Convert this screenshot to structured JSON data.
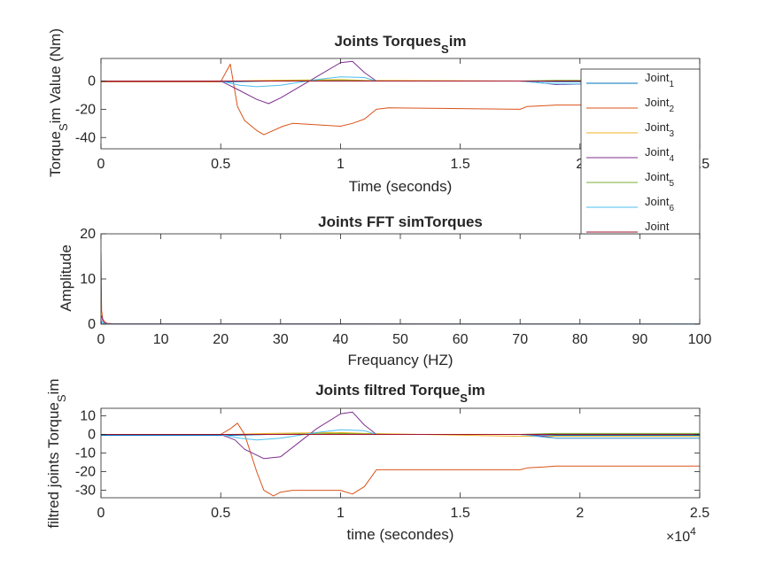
{
  "colors": {
    "joint1": "#0072BD",
    "joint2": "#D95319",
    "joint3": "#EDB120",
    "joint4": "#7E2F8E",
    "joint5": "#77AC30",
    "joint6": "#4DBEEE",
    "joint7": "#A2142F",
    "axes": "#262626",
    "background": "#ffffff"
  },
  "legend": {
    "placement": "top-right",
    "entries": [
      {
        "name": "Joint",
        "sub": "1"
      },
      {
        "name": "Joint",
        "sub": "2"
      },
      {
        "name": "Joint",
        "sub": "3"
      },
      {
        "name": "Joint",
        "sub": "4"
      },
      {
        "name": "Joint",
        "sub": "5"
      },
      {
        "name": "Joint",
        "sub": "6"
      },
      {
        "name": "Joint",
        "sub": ""
      }
    ]
  },
  "chart_data": [
    {
      "type": "line",
      "title_main": "Joints Torques",
      "title_sub": "S",
      "title_tail": "im",
      "xlabel": "Time (seconds)",
      "ylabel_main": "Torque",
      "ylabel_sub": "S",
      "ylabel_tail": "im Value (Nm)",
      "xlim": [
        0,
        25000
      ],
      "ylim": [
        -48,
        16
      ],
      "xticks": [
        0,
        5000,
        10000,
        15000,
        20000,
        25000
      ],
      "xtick_labels": [
        "0",
        "0.5",
        "1",
        "1.5",
        "2",
        "2.5"
      ],
      "yticks": [
        -40,
        -20,
        0
      ],
      "ytick_labels": [
        "-40",
        "-20",
        "0"
      ],
      "x_exponent_base": "",
      "x_exponent_power": "4",
      "series": [
        {
          "key": "joint1",
          "x": [
            0,
            5500,
            7000,
            10000,
            12000,
            17500,
            19000,
            25000
          ],
          "y": [
            -0.5,
            -0.5,
            0,
            0,
            0,
            0,
            -0.5,
            -0.5
          ]
        },
        {
          "key": "joint2",
          "x": [
            0,
            5000,
            5400,
            5700,
            6000,
            6500,
            6800,
            7200,
            7600,
            8000,
            9000,
            10000,
            10500,
            11000,
            11500,
            12000,
            17500,
            17800,
            18500,
            19000,
            25000
          ],
          "y": [
            -0.5,
            -0.5,
            12,
            -18,
            -28,
            -35,
            -38,
            -35,
            -32,
            -30,
            -31,
            -32,
            -30,
            -27,
            -20,
            -19,
            -20,
            -18,
            -17.5,
            -17,
            -17
          ]
        },
        {
          "key": "joint3",
          "x": [
            0,
            5500,
            7000,
            10000,
            11000,
            17500,
            19000,
            25000
          ],
          "y": [
            0,
            0,
            0.5,
            1,
            0.5,
            0,
            0,
            0
          ]
        },
        {
          "key": "joint4",
          "x": [
            0,
            5000,
            5600,
            6500,
            7000,
            7500,
            8500,
            9000,
            10000,
            10500,
            11000,
            11500,
            17500,
            18500,
            19000,
            25000
          ],
          "y": [
            0,
            0,
            -5,
            -13,
            -16,
            -12,
            -2,
            3,
            13,
            14,
            6,
            0,
            0,
            -1.5,
            -2.5,
            0
          ]
        },
        {
          "key": "joint5",
          "x": [
            0,
            5500,
            7000,
            10000,
            12000,
            17500,
            19000,
            25000
          ],
          "y": [
            0,
            0,
            0,
            0.5,
            0,
            0,
            0.5,
            0.5
          ]
        },
        {
          "key": "joint6",
          "x": [
            0,
            5000,
            5800,
            6500,
            7500,
            9000,
            10000,
            11000,
            11500,
            17500,
            18500,
            19000,
            25000
          ],
          "y": [
            0,
            0,
            -3,
            -4,
            -3,
            1,
            3,
            2.5,
            0,
            0,
            -1.5,
            -2,
            -2
          ]
        },
        {
          "key": "joint7",
          "x": [
            0,
            5500,
            7000,
            10000,
            12000,
            17500,
            25000
          ],
          "y": [
            0,
            0,
            0,
            0,
            0,
            0,
            0
          ]
        }
      ]
    },
    {
      "type": "line",
      "title_main": "Joints FFT simTorques",
      "title_sub": "",
      "title_tail": "",
      "xlabel": "Frequancy (HZ)",
      "ylabel_main": "Amplitude",
      "ylabel_sub": "",
      "ylabel_tail": "",
      "xlim": [
        0,
        100
      ],
      "ylim": [
        0,
        20
      ],
      "xticks": [
        0,
        10,
        20,
        30,
        40,
        50,
        60,
        70,
        80,
        90,
        100
      ],
      "xtick_labels": [
        "0",
        "10",
        "20",
        "30",
        "40",
        "50",
        "60",
        "70",
        "80",
        "90",
        "100"
      ],
      "yticks": [
        0,
        10,
        20
      ],
      "ytick_labels": [
        "0",
        "10",
        "20"
      ],
      "x_exponent_base": "",
      "x_exponent_power": "",
      "series": [
        {
          "key": "joint1",
          "x": [
            0,
            0.1,
            0.3,
            0.6,
            1,
            2,
            100
          ],
          "y": [
            0,
            0.5,
            0.3,
            0.1,
            0.05,
            0.02,
            0.01
          ]
        },
        {
          "key": "joint2",
          "x": [
            0,
            0.1,
            0.3,
            0.6,
            1,
            2,
            100
          ],
          "y": [
            16,
            3,
            1.2,
            0.5,
            0.2,
            0.1,
            0.02
          ]
        },
        {
          "key": "joint4",
          "x": [
            0,
            0.1,
            0.3,
            0.6,
            1,
            2,
            100
          ],
          "y": [
            1.5,
            1.8,
            0.8,
            0.3,
            0.1,
            0.05,
            0.01
          ]
        },
        {
          "key": "joint6",
          "x": [
            0,
            0.1,
            0.3,
            0.6,
            1,
            2,
            100
          ],
          "y": [
            0.8,
            0.6,
            0.3,
            0.1,
            0.05,
            0.02,
            0.01
          ]
        }
      ]
    },
    {
      "type": "line",
      "title_main": "Joints filtred  Torque",
      "title_sub": "S",
      "title_tail": "im",
      "xlabel": "time (secondes)",
      "ylabel_main": "filtred joints Torque",
      "ylabel_sub": "S",
      "ylabel_tail": "im",
      "xlim": [
        0,
        25000
      ],
      "ylim": [
        -34,
        14
      ],
      "xticks": [
        0,
        5000,
        10000,
        15000,
        20000,
        25000
      ],
      "xtick_labels": [
        "0",
        "0.5",
        "1",
        "1.5",
        "2",
        "2.5"
      ],
      "yticks": [
        -30,
        -20,
        -10,
        0,
        10
      ],
      "ytick_labels": [
        "-30",
        "-20",
        "-10",
        "0",
        "10"
      ],
      "x_exponent_base": "×10",
      "x_exponent_power": "4",
      "series": [
        {
          "key": "joint1",
          "x": [
            0,
            5500,
            7000,
            10000,
            12000,
            17500,
            19000,
            25000
          ],
          "y": [
            -0.5,
            -0.5,
            0,
            0,
            0,
            0,
            -0.5,
            -0.5
          ]
        },
        {
          "key": "joint2",
          "x": [
            0,
            5000,
            5400,
            5700,
            6000,
            6500,
            6800,
            7200,
            7500,
            8000,
            9000,
            10000,
            10500,
            11000,
            11500,
            12000,
            17500,
            17800,
            18500,
            19000,
            25000
          ],
          "y": [
            0,
            0,
            3,
            6,
            0,
            -20,
            -30,
            -33,
            -31,
            -30,
            -30,
            -30,
            -32,
            -28,
            -19,
            -19,
            -19,
            -18,
            -17.5,
            -17,
            -17
          ]
        },
        {
          "key": "joint3",
          "x": [
            0,
            5500,
            7000,
            10000,
            11000,
            17500,
            19000,
            25000
          ],
          "y": [
            0,
            0,
            0.5,
            1,
            0.5,
            -1,
            -1,
            -1
          ]
        },
        {
          "key": "joint4",
          "x": [
            0,
            5000,
            5600,
            6000,
            6800,
            7500,
            8500,
            9000,
            10000,
            10500,
            11000,
            11500,
            17500,
            18500,
            19000,
            25000
          ],
          "y": [
            0,
            0,
            -3,
            -8,
            -13,
            -12,
            -2,
            3,
            11,
            12,
            5,
            0,
            0,
            -1,
            -2,
            -2
          ]
        },
        {
          "key": "joint5",
          "x": [
            0,
            5500,
            7000,
            10000,
            12000,
            17500,
            19000,
            25000
          ],
          "y": [
            0,
            0,
            0,
            0.5,
            0,
            0,
            0.5,
            0.5
          ]
        },
        {
          "key": "joint6",
          "x": [
            0,
            5000,
            5800,
            6500,
            7500,
            9000,
            10000,
            11000,
            11500,
            17500,
            18500,
            19000,
            25000
          ],
          "y": [
            0,
            0,
            -2,
            -3,
            -2,
            1,
            2.5,
            2,
            0,
            0,
            -1.5,
            -2,
            -2
          ]
        },
        {
          "key": "joint7",
          "x": [
            0,
            5500,
            7000,
            10000,
            12000,
            17500,
            25000
          ],
          "y": [
            0,
            0,
            0,
            0,
            0,
            0,
            0
          ]
        }
      ]
    }
  ]
}
